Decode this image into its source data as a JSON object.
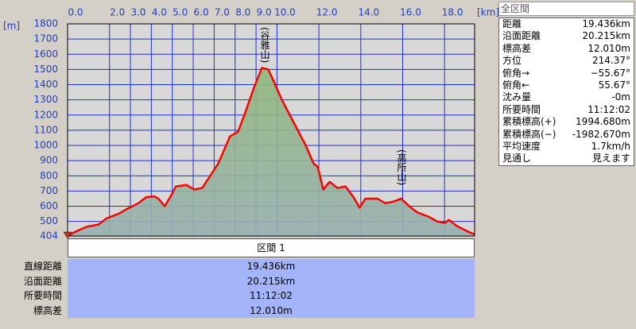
{
  "chart_data": {
    "type": "area",
    "x_unit": "[km]",
    "y_unit": "[m]",
    "x": [
      0,
      0.34,
      0.91,
      1.48,
      1.86,
      2.43,
      2.81,
      3.38,
      3.76,
      4.14,
      4.33,
      4.64,
      4.9,
      5.17,
      5.67,
      6.05,
      6.43,
      6.81,
      7.19,
      7.57,
      7.76,
      8.14,
      8.52,
      8.9,
      9.28,
      9.58,
      9.85,
      10.23,
      10.61,
      10.99,
      11.37,
      11.75,
      11.94,
      12.21,
      12.51,
      12.89,
      13.27,
      13.65,
      13.95,
      14.22,
      14.79,
      15.17,
      15.55,
      15.93,
      16.31,
      16.69,
      17.26,
      17.64,
      18.02,
      18.21,
      18.59,
      19.16,
      19.436
    ],
    "values": [
      404,
      430,
      465,
      480,
      520,
      550,
      580,
      620,
      660,
      665,
      650,
      600,
      660,
      730,
      740,
      710,
      720,
      800,
      880,
      1000,
      1060,
      1090,
      1230,
      1380,
      1510,
      1500,
      1420,
      1300,
      1200,
      1100,
      1000,
      880,
      860,
      710,
      760,
      720,
      730,
      660,
      590,
      650,
      650,
      620,
      630,
      650,
      600,
      560,
      530,
      500,
      490,
      510,
      470,
      430,
      416
    ],
    "color": "#ff0000",
    "fill_color": "#8fb878",
    "xlim": [
      0,
      19.436
    ],
    "ylim": [
      404,
      1800
    ],
    "xticks": [
      {
        "value": 0,
        "label": "0.0"
      },
      {
        "value": 2,
        "label": "2.0"
      },
      {
        "value": 3,
        "label": "3.0"
      },
      {
        "value": 4,
        "label": "4.0"
      },
      {
        "value": 5,
        "label": "5.0"
      },
      {
        "value": 6,
        "label": "6.0"
      },
      {
        "value": 7,
        "label": "7.0"
      },
      {
        "value": 8,
        "label": "8.0"
      },
      {
        "value": 9,
        "label": "9.0"
      },
      {
        "value": 10,
        "label": "10.0"
      },
      {
        "value": 12,
        "label": "12.0"
      },
      {
        "value": 14,
        "label": "14.0"
      },
      {
        "value": 16,
        "label": "16.0"
      },
      {
        "value": 18,
        "label": "18.0"
      }
    ],
    "yticks": [
      404,
      500,
      600,
      700,
      800,
      900,
      1000,
      1100,
      1200,
      1300,
      1400,
      1500,
      1600,
      1700,
      1800
    ],
    "grid": true,
    "annotations": [
      {
        "text": "(谷雅山)"
      },
      {
        "text": "(高所山)"
      }
    ]
  },
  "panel": {
    "title": "全区間",
    "rows": [
      [
        "距離",
        "19.436km"
      ],
      [
        "沿面距離",
        "20.215km"
      ],
      [
        "標高差",
        "12.010m"
      ],
      [
        "方位",
        "214.37°"
      ],
      [
        "俯角→",
        "−55.67°"
      ],
      [
        "俯角←",
        "55.67°"
      ],
      [
        "沈み量",
        "-0m"
      ],
      [
        "所要時間",
        "11:12:02"
      ],
      [
        "累積標高(+)",
        "1994.680m"
      ],
      [
        "累積標高(−)",
        "-1982.670m"
      ],
      [
        "平均速度",
        "1.7km/h"
      ],
      [
        "見通し",
        "見えます"
      ]
    ]
  },
  "section": {
    "title": "区間 1",
    "rows": [
      [
        "直線距離",
        "19.436km"
      ],
      [
        "沿面距離",
        "20.215km"
      ],
      [
        "所要時間",
        "11:12:02"
      ],
      [
        "標高差",
        "12.010m"
      ]
    ]
  }
}
